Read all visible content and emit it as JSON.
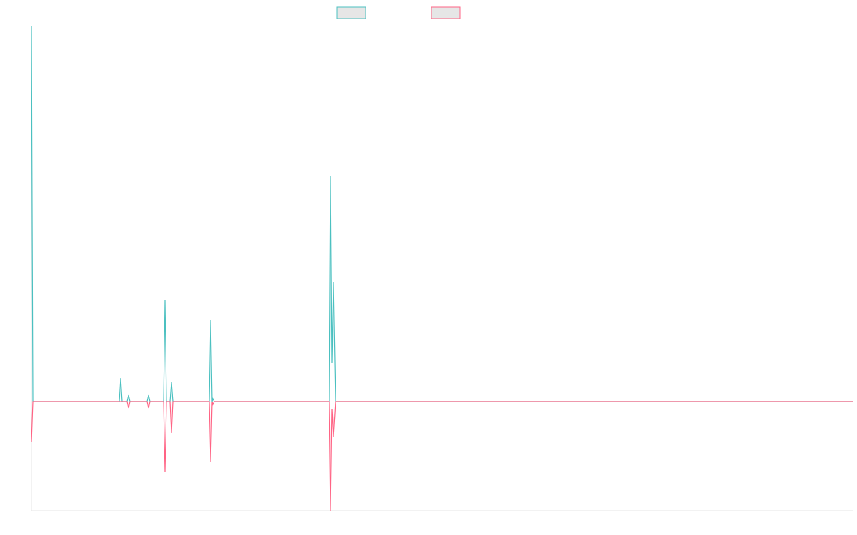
{
  "chart_data": {
    "type": "line",
    "xlim": [
      0,
      1151
    ],
    "ylim": [
      -153,
      527
    ],
    "series": [
      {
        "color": "#4bc0c0",
        "x": [
          0,
          2,
          123,
          125,
          127,
          134,
          136,
          138,
          162,
          164,
          166,
          185,
          187,
          189,
          194,
          196,
          198,
          249,
          251,
          253,
          254,
          256,
          417,
          419,
          421,
          423,
          426,
          1151
        ],
        "values": [
          527,
          0,
          0,
          33,
          0,
          0,
          9,
          0,
          0,
          9,
          0,
          0,
          142,
          0,
          0,
          27,
          0,
          0,
          114,
          0,
          4,
          0,
          0,
          316,
          54,
          168,
          0,
          0
        ]
      },
      {
        "color": "#ff6384",
        "x": [
          0,
          2,
          134,
          136,
          138,
          162,
          164,
          166,
          185,
          187,
          189,
          194,
          196,
          198,
          249,
          251,
          253,
          254,
          256,
          417,
          419,
          421,
          423,
          426,
          1151
        ],
        "values": [
          -57,
          0,
          0,
          -9,
          0,
          0,
          -9,
          0,
          0,
          -99,
          0,
          0,
          -44,
          0,
          0,
          -84,
          0,
          -4,
          0,
          0,
          -153,
          -10,
          -50,
          0,
          0
        ]
      }
    ]
  }
}
